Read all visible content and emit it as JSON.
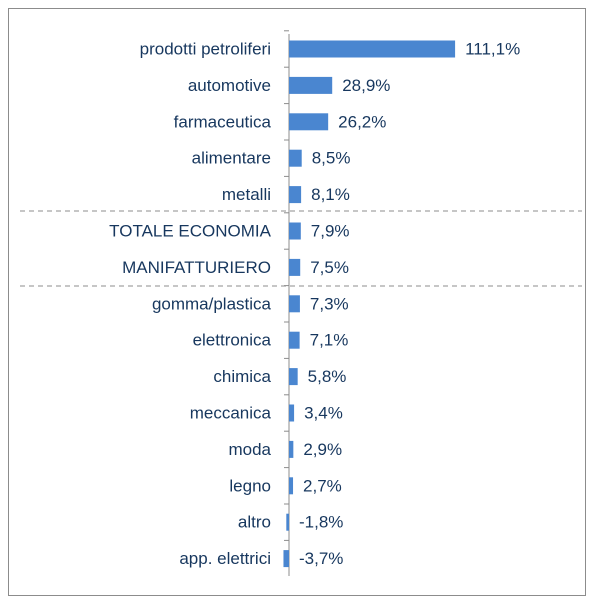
{
  "chart_data": {
    "type": "bar",
    "orientation": "horizontal",
    "color": "#4a86d0",
    "categories": [
      "prodotti petroliferi",
      "automotive",
      "farmaceutica",
      "alimentare",
      "metalli",
      "TOTALE ECONOMIA",
      "MANIFATTURIERO",
      "gomma/plastica",
      "elettronica",
      "chimica",
      "meccanica",
      "moda",
      "legno",
      "altro",
      "app. elettrici"
    ],
    "values": [
      111.1,
      28.9,
      26.2,
      8.5,
      8.1,
      7.9,
      7.5,
      7.3,
      7.1,
      5.8,
      3.4,
      2.9,
      2.7,
      -1.8,
      -3.7
    ],
    "value_labels": [
      "111,1%",
      "28,9%",
      "26,2%",
      "8,5%",
      "8,1%",
      "7,9%",
      "7,5%",
      "7,3%",
      "7,1%",
      "5,8%",
      "3,4%",
      "2,9%",
      "2,7%",
      "-1,8%",
      "-3,7%"
    ]
  }
}
